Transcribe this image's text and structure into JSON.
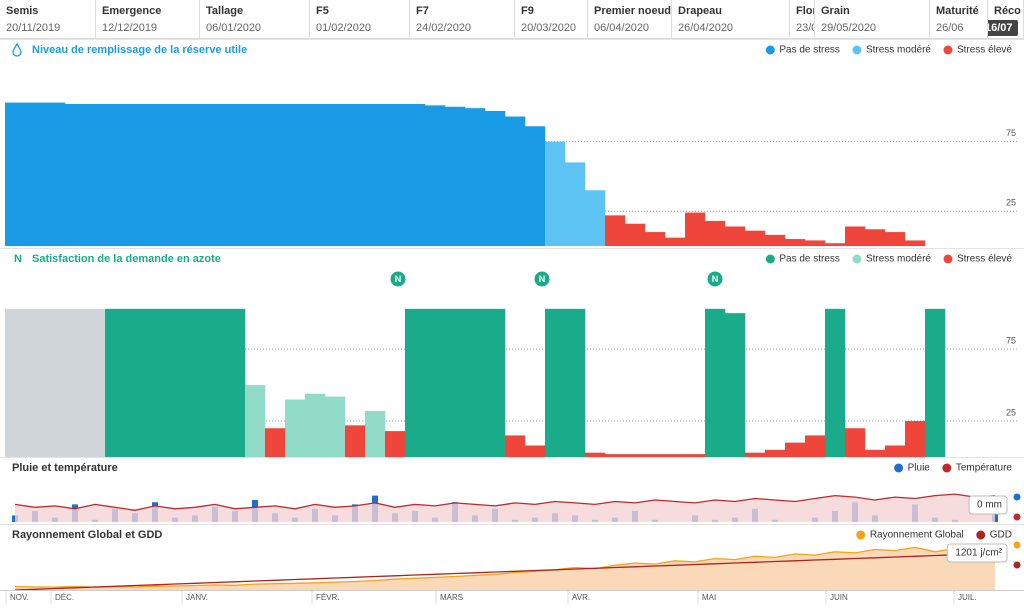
{
  "stages": [
    {
      "label": "Semis",
      "date": "20/11/2019"
    },
    {
      "label": "Emergence",
      "date": "12/12/2019"
    },
    {
      "label": "Tallage",
      "date": "06/01/2020"
    },
    {
      "label": "F5",
      "date": "01/02/2020"
    },
    {
      "label": "F7",
      "date": "24/02/2020"
    },
    {
      "label": "F9",
      "date": "20/03/2020"
    },
    {
      "label": "Premier noeud",
      "date": "06/04/2020"
    },
    {
      "label": "Drapeau",
      "date": "26/04/2020"
    },
    {
      "label": "Flor",
      "date": "23/0"
    },
    {
      "label": "Grain",
      "date": "29/05/2020"
    },
    {
      "label": "Maturité",
      "date": "26/06"
    },
    {
      "label": "Réco",
      "date": "16/07"
    }
  ],
  "x_axis_labels": [
    "NOV.",
    "DÉC.",
    "JANV.",
    "FÉVR.",
    "MARS",
    "AVR.",
    "MAI",
    "JUIN",
    "JUIL."
  ],
  "chart_data": [
    {
      "type": "bar",
      "title": "Niveau de remplissage de la réserve utile",
      "ylim": [
        0,
        130
      ],
      "yticks": [
        25,
        75
      ],
      "grid": true,
      "series": [
        {
          "name": "Pas de stress",
          "color": "#1a9be6",
          "values": [
            103,
            103,
            103,
            102,
            102,
            102,
            102,
            102,
            102,
            102,
            102,
            102,
            102,
            102,
            102,
            102,
            102,
            102,
            102,
            102,
            102,
            101,
            100,
            99,
            97,
            93,
            86,
            null,
            null,
            null,
            null,
            null,
            null,
            null,
            null,
            null,
            null,
            null,
            null,
            null,
            null,
            null,
            null,
            null,
            null,
            null,
            null,
            null,
            null,
            null
          ]
        },
        {
          "name": "Stress modéré",
          "color": "#5cc3f2",
          "values": [
            null,
            null,
            null,
            null,
            null,
            null,
            null,
            null,
            null,
            null,
            null,
            null,
            null,
            null,
            null,
            null,
            null,
            null,
            null,
            null,
            null,
            null,
            null,
            null,
            null,
            null,
            null,
            75,
            60,
            40,
            null,
            null,
            null,
            null,
            null,
            null,
            null,
            null,
            null,
            null,
            null,
            null,
            null,
            null,
            null,
            null,
            null,
            null,
            null,
            null
          ]
        },
        {
          "name": "Stress élevé",
          "color": "#f0453a",
          "values": [
            null,
            null,
            null,
            null,
            null,
            null,
            null,
            null,
            null,
            null,
            null,
            null,
            null,
            null,
            null,
            null,
            null,
            null,
            null,
            null,
            null,
            null,
            null,
            null,
            null,
            null,
            null,
            null,
            null,
            null,
            22,
            16,
            10,
            6,
            24,
            18,
            14,
            11,
            8,
            5,
            4,
            2,
            14,
            12,
            10,
            4,
            null,
            null,
            null,
            null
          ]
        }
      ]
    },
    {
      "type": "bar",
      "title_icon": "N",
      "title": "Satisfaction de la demande en azote",
      "ylim": [
        0,
        130
      ],
      "yticks": [
        25,
        75
      ],
      "grid": true,
      "before_emergence": {
        "color": "#d0d5da",
        "values": [
          103,
          103,
          103,
          103,
          103,
          null,
          null,
          null,
          null,
          null,
          null,
          null,
          null,
          null,
          null,
          null,
          null,
          null,
          null,
          null,
          null,
          null,
          null,
          null,
          null,
          null,
          null,
          null,
          null,
          null,
          null,
          null,
          null,
          null,
          null,
          null,
          null,
          null,
          null,
          null,
          null,
          null,
          null,
          null,
          null,
          null,
          null,
          null,
          null,
          null
        ]
      },
      "markers": [
        {
          "label": "N",
          "x": 19.65
        },
        {
          "label": "N",
          "x": 26.85
        },
        {
          "label": "N",
          "x": 35.5
        }
      ],
      "series": [
        {
          "name": "Pas de stress",
          "color": "#1aac8a",
          "values": [
            null,
            null,
            null,
            null,
            null,
            103,
            103,
            103,
            103,
            103,
            103,
            103,
            null,
            null,
            null,
            null,
            null,
            null,
            null,
            null,
            103,
            103,
            103,
            103,
            103,
            null,
            null,
            103,
            103,
            null,
            null,
            null,
            null,
            null,
            null,
            103,
            100,
            null,
            null,
            null,
            null,
            103,
            null,
            null,
            null,
            null,
            103,
            null,
            null,
            null
          ]
        },
        {
          "name": "Stress modéré",
          "color": "#93dbc9",
          "values": [
            null,
            null,
            null,
            null,
            null,
            null,
            null,
            null,
            null,
            null,
            null,
            null,
            50,
            null,
            40,
            44,
            42,
            null,
            32,
            null,
            null,
            null,
            null,
            null,
            null,
            null,
            null,
            null,
            null,
            null,
            null,
            null,
            null,
            null,
            null,
            null,
            null,
            null,
            null,
            null,
            null,
            null,
            null,
            null,
            null,
            null,
            null,
            null,
            null,
            null
          ]
        },
        {
          "name": "Stress élevé",
          "color": "#f0453a",
          "values": [
            null,
            null,
            null,
            null,
            null,
            null,
            null,
            null,
            null,
            null,
            null,
            null,
            null,
            20,
            null,
            null,
            null,
            22,
            null,
            18,
            null,
            null,
            null,
            null,
            null,
            15,
            8,
            null,
            null,
            3,
            2,
            2,
            2,
            2,
            2,
            null,
            null,
            3,
            5,
            10,
            15,
            null,
            20,
            5,
            8,
            25,
            null,
            null,
            null,
            null
          ]
        }
      ]
    },
    {
      "type": "combo",
      "title": "Pluie et température",
      "ylim": [
        0,
        20
      ],
      "y2lim": [
        0,
        30
      ],
      "tooltip": "0 mm",
      "series": [
        {
          "name": "Pluie",
          "color": "#1f6fd1",
          "type": "bar",
          "values": [
            3,
            5,
            2,
            8,
            1,
            6,
            4,
            9,
            2,
            3,
            7,
            5,
            10,
            4,
            2,
            6,
            3,
            8,
            12,
            4,
            5,
            2,
            9,
            3,
            6,
            1,
            2,
            4,
            3,
            1,
            2,
            5,
            1,
            0,
            3,
            1,
            2,
            6,
            1,
            0,
            2,
            5,
            9,
            3,
            0,
            8,
            2,
            1,
            0,
            4
          ]
        },
        {
          "name": "Température",
          "color": "#c0282d",
          "type": "area",
          "fill": "#f4d3d5",
          "axis": "y2",
          "values": [
            12,
            10,
            11,
            9,
            12,
            10,
            8,
            11,
            9,
            10,
            12,
            9,
            10,
            11,
            9,
            12,
            10,
            11,
            13,
            10,
            12,
            11,
            13,
            12,
            11,
            13,
            12,
            14,
            13,
            12,
            14,
            13,
            15,
            14,
            13,
            15,
            14,
            16,
            15,
            14,
            16,
            18,
            17,
            15,
            17,
            16,
            18,
            19,
            17,
            18
          ]
        }
      ]
    },
    {
      "type": "combo",
      "title": "Rayonnement Global et GDD",
      "ylim": [
        0,
        2000
      ],
      "y2lim": [
        0,
        3000
      ],
      "tooltip": "1201 j/cm²",
      "series": [
        {
          "name": "Rayonnement Global",
          "color": "#f7a21b",
          "type": "area",
          "fill": "#f9cfa6",
          "values": [
            150,
            140,
            130,
            160,
            120,
            150,
            140,
            170,
            180,
            200,
            220,
            210,
            260,
            280,
            300,
            320,
            350,
            380,
            420,
            480,
            520,
            560,
            600,
            650,
            700,
            780,
            820,
            900,
            1000,
            950,
            1100,
            1200,
            1150,
            1300,
            1250,
            1400,
            1350,
            1500,
            1450,
            1600,
            1550,
            1700,
            1650,
            1800,
            1750,
            1900,
            1700,
            1850,
            1800,
            1201
          ]
        },
        {
          "name": "GDD",
          "color": "#b0241f",
          "type": "line",
          "axis": "y2",
          "values": [
            0,
            50,
            100,
            150,
            200,
            250,
            300,
            350,
            400,
            450,
            500,
            550,
            600,
            650,
            700,
            750,
            800,
            850,
            900,
            950,
            1000,
            1050,
            1100,
            1150,
            1200,
            1250,
            1300,
            1350,
            1400,
            1450,
            1500,
            1550,
            1600,
            1650,
            1700,
            1750,
            1800,
            1850,
            1900,
            1950,
            2000,
            2050,
            2100,
            2150,
            2200,
            2250,
            2300,
            2350,
            2400,
            2450
          ]
        }
      ]
    }
  ]
}
